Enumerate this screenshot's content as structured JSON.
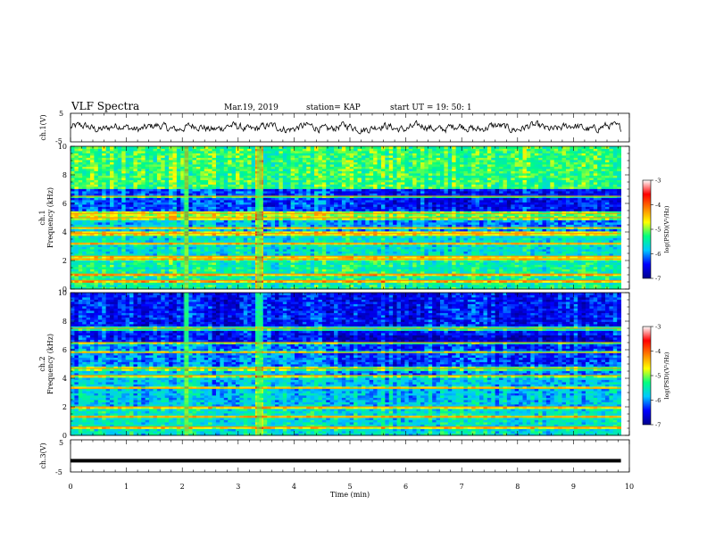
{
  "header": {
    "title": "VLF Spectra",
    "date": "Mar.19, 2019",
    "station": "station= KAP",
    "start": "start  UT =   19: 50: 1"
  },
  "chart_data": [
    {
      "type": "line",
      "panel": "ch1-waveform",
      "ylabel": "ch.1(V)",
      "ylim": [
        -5,
        5
      ],
      "ytick_labels": [
        "5",
        "-5"
      ],
      "xlim": [
        0,
        10
      ],
      "series": [
        {
          "values": "noisy waveform, amplitude approx. -2 to 2 V, min 0 to 9.85"
        }
      ]
    },
    {
      "type": "heatmap",
      "panel": "ch1-spectrogram",
      "ylabel": "ch.1\nFrequency  (kHz)",
      "ylim": [
        0,
        10
      ],
      "ytick_labels": [
        "0",
        "2",
        "4",
        "6",
        "8",
        "10"
      ],
      "xlim": [
        0,
        10
      ],
      "data_extent_min": 9.85,
      "features": {
        "broadband_bursts_min": [
          2.07,
          3.38
        ],
        "transition_min": 4.75,
        "lines_khz": [
          0.6,
          1.05,
          2.1,
          2.3,
          3.2,
          3.9,
          4.3,
          5.0,
          5.3,
          6.5
        ]
      },
      "colorbar": {
        "label": "log(PSD)(V²/Hz)",
        "range": [
          -7,
          -3
        ],
        "tick_labels": [
          "-3",
          "-4",
          "-5",
          "-6",
          "-7"
        ],
        "colors": [
          "#00008c",
          "#0000ff",
          "#00c8ff",
          "#00ff80",
          "#ffff00",
          "#ff8000",
          "#ff0000",
          "#ffffff"
        ]
      }
    },
    {
      "type": "heatmap",
      "panel": "ch2-spectrogram",
      "ylabel": "ch.2\nFrequency  (kHz)",
      "ylim": [
        0,
        10
      ],
      "ytick_labels": [
        "0",
        "2",
        "4",
        "6",
        "8",
        "10"
      ],
      "xlim": [
        0,
        10
      ],
      "data_extent_min": 9.85,
      "features": {
        "broadband_bursts_min": [
          2.07,
          3.38
        ],
        "transition_min": 4.75,
        "lines_khz": [
          0.6,
          1.3,
          2.0,
          3.3,
          4.2,
          4.7,
          5.8,
          6.5,
          7.5
        ]
      },
      "colorbar": {
        "label": "log(PSD)(V²/Hz)",
        "range": [
          -7,
          -3
        ],
        "tick_labels": [
          "-3",
          "-4",
          "-5",
          "-6",
          "-7"
        ],
        "colors": [
          "#00008c",
          "#0000ff",
          "#00c8ff",
          "#00ff80",
          "#ffff00",
          "#ff8000",
          "#ff0000",
          "#ffffff"
        ]
      }
    },
    {
      "type": "line",
      "panel": "ch3-waveform",
      "ylabel": "ch.3(V)",
      "ylim": [
        -5,
        5
      ],
      "ytick_labels": [
        "5",
        "-5"
      ],
      "xlim": [
        0,
        10
      ],
      "series": [
        {
          "values": "flat at approx. -1.5 V, 0 to 9.85 min"
        }
      ]
    }
  ],
  "x_axis": {
    "label": "Time  (min)",
    "tick_labels": [
      "0",
      "1",
      "2",
      "3",
      "4",
      "5",
      "6",
      "7",
      "8",
      "9",
      "10"
    ],
    "range": [
      0,
      10
    ]
  }
}
